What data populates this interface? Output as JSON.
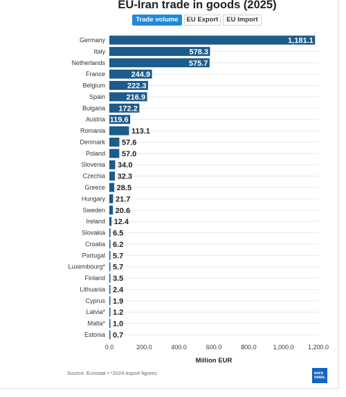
{
  "toggles": [
    {
      "label": "Trade volume",
      "active": true
    },
    {
      "label": "EU Export",
      "active": false
    },
    {
      "label": "EU Import",
      "active": false
    }
  ],
  "colors": {
    "active_toggle": "#2389d6",
    "logo": "#1565c0"
  },
  "chart_data": {
    "type": "bar",
    "orientation": "horizontal",
    "title": "EU-Iran trade in goods (2025)",
    "categories": [
      "Germany",
      "Italy",
      "Netherlands",
      "France",
      "Belgium",
      "Spain",
      "Bulgaria",
      "Austria",
      "Romania",
      "Denmark",
      "Poland",
      "Slovenia",
      "Czechia",
      "Greece",
      "Hungary",
      "Sweden",
      "Ireland",
      "Slovakia",
      "Croatia",
      "Portugal",
      "Luxembourg*",
      "Finland",
      "Lithuania",
      "Cyprus",
      "Latvia*",
      "Malta*",
      "Estonia"
    ],
    "values": [
      1181.1,
      578.3,
      575.7,
      244.9,
      222.3,
      216.9,
      172.2,
      119.6,
      113.1,
      57.6,
      57.0,
      34.0,
      32.3,
      28.5,
      21.7,
      20.6,
      12.4,
      6.5,
      6.2,
      5.7,
      5.7,
      3.5,
      2.4,
      1.9,
      1.2,
      1.0,
      0.7
    ],
    "value_labels": [
      "1,181.1",
      "578.3",
      "575.7",
      "244.9",
      "222.3",
      "216.9",
      "172.2",
      "119.6",
      "113.1",
      "57.6",
      "57.0",
      "34.0",
      "32.3",
      "28.5",
      "21.7",
      "20.6",
      "12.4",
      "6.5",
      "6.2",
      "5.7",
      "5.7",
      "3.5",
      "2.4",
      "1.9",
      "1.2",
      "1.0",
      "0.7"
    ],
    "xlabel": "Million EUR",
    "ylabel": "",
    "xlim": [
      0,
      1200
    ],
    "xticks": [
      0,
      200,
      400,
      600,
      800,
      1000,
      1200
    ],
    "xtick_labels": [
      "0.0",
      "200.0",
      "400.0",
      "600.0",
      "800.0",
      "1,000.0",
      "1,200.0"
    ],
    "grid": true,
    "legend": "none",
    "bar_color": "#1d5b8a"
  },
  "source": "Source: Eurostat • *2024 export figures",
  "logo": {
    "line1": "euro",
    "line2": "news."
  }
}
